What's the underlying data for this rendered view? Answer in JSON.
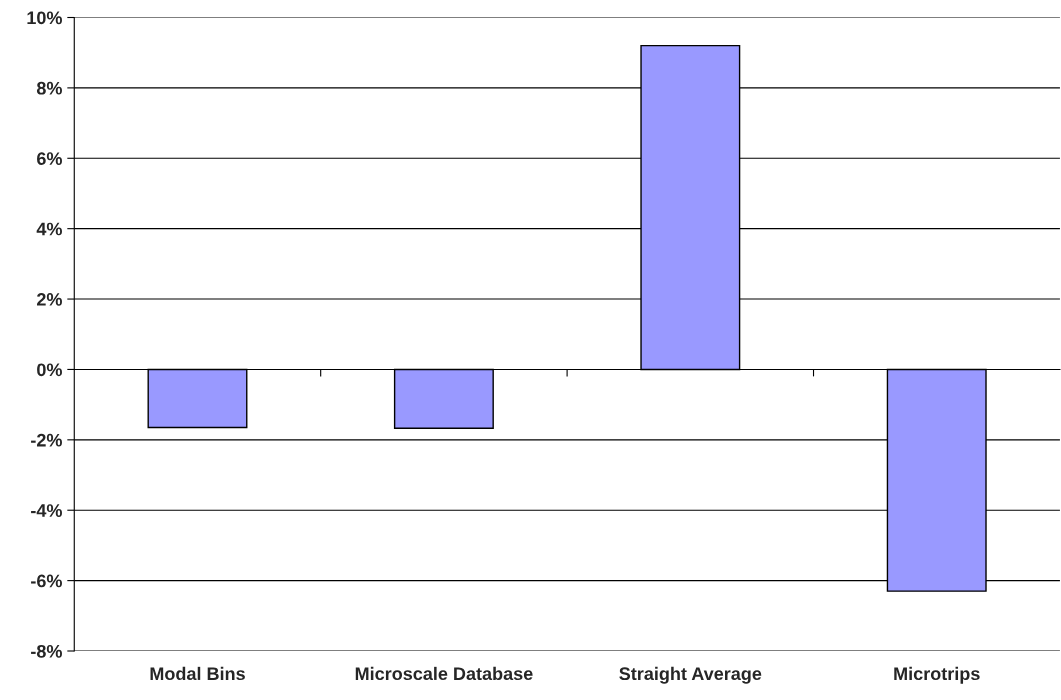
{
  "chart_data": {
    "type": "bar",
    "categories": [
      "Modal Bins",
      "Microscale Database",
      "Straight Average",
      "Microtrips"
    ],
    "values": [
      -1.65,
      -1.67,
      9.2,
      -6.3
    ],
    "color": "#9999ff",
    "ylim": [
      -8,
      10
    ],
    "yticks": [
      {
        "value": -8,
        "label": "-8%"
      },
      {
        "value": -6,
        "label": "-6%"
      },
      {
        "value": -4,
        "label": "-4%"
      },
      {
        "value": -2,
        "label": "-2%"
      },
      {
        "value": 0,
        "label": "0%"
      },
      {
        "value": 2,
        "label": "2%"
      },
      {
        "value": 4,
        "label": "4%"
      },
      {
        "value": 6,
        "label": "6%"
      },
      {
        "value": 8,
        "label": "8%"
      },
      {
        "value": 10,
        "label": "10%"
      }
    ],
    "grid": "y",
    "legend": false
  }
}
